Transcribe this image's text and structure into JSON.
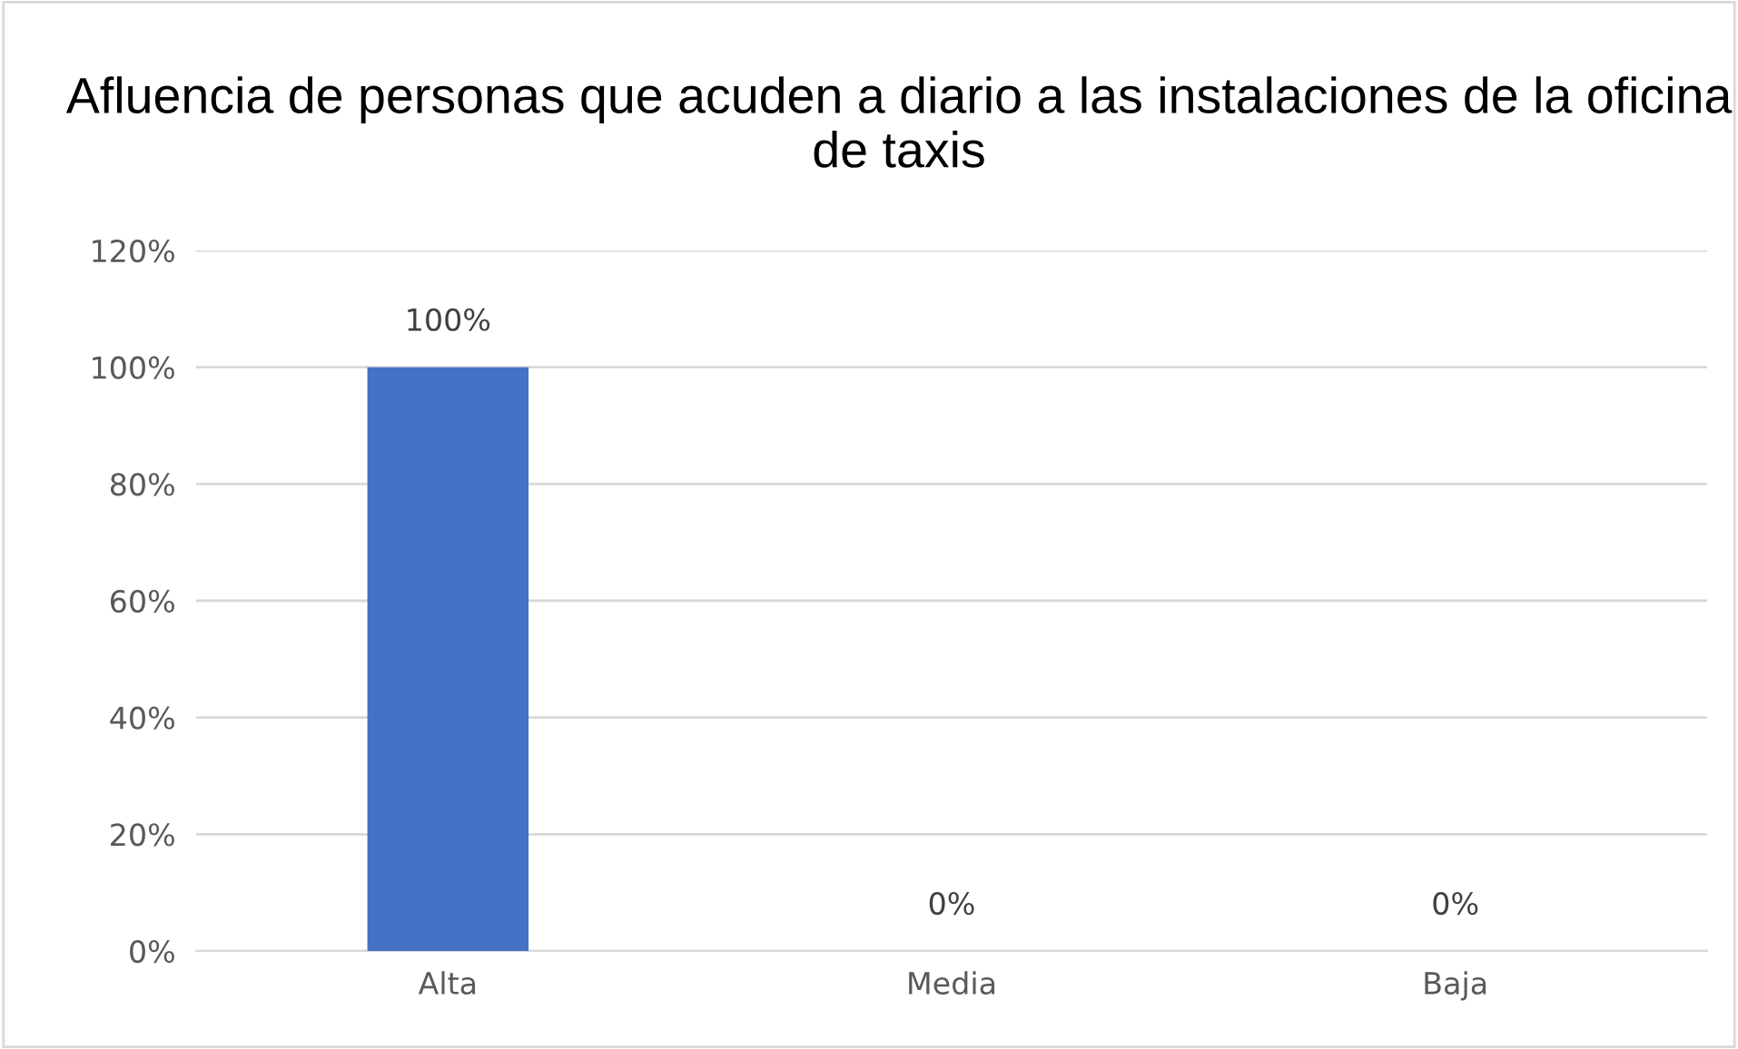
{
  "chart_data": {
    "type": "bar",
    "title": "Afluencia de personas que acuden a diario a las instalaciones de la oficina de taxis",
    "categories": [
      "Alta",
      "Media",
      "Baja"
    ],
    "values": [
      100,
      0,
      0
    ],
    "value_labels": [
      "100%",
      "0%",
      "0%"
    ],
    "color": "#4472c4",
    "ylim": [
      0,
      120
    ],
    "yticks": [
      {
        "value": 0,
        "label": "0%"
      },
      {
        "value": 20,
        "label": "20%"
      },
      {
        "value": 40,
        "label": "40%"
      },
      {
        "value": 60,
        "label": "60%"
      },
      {
        "value": 80,
        "label": "80%"
      },
      {
        "value": 100,
        "label": "100%"
      },
      {
        "value": 120,
        "label": "120%"
      }
    ],
    "grid": "y"
  }
}
